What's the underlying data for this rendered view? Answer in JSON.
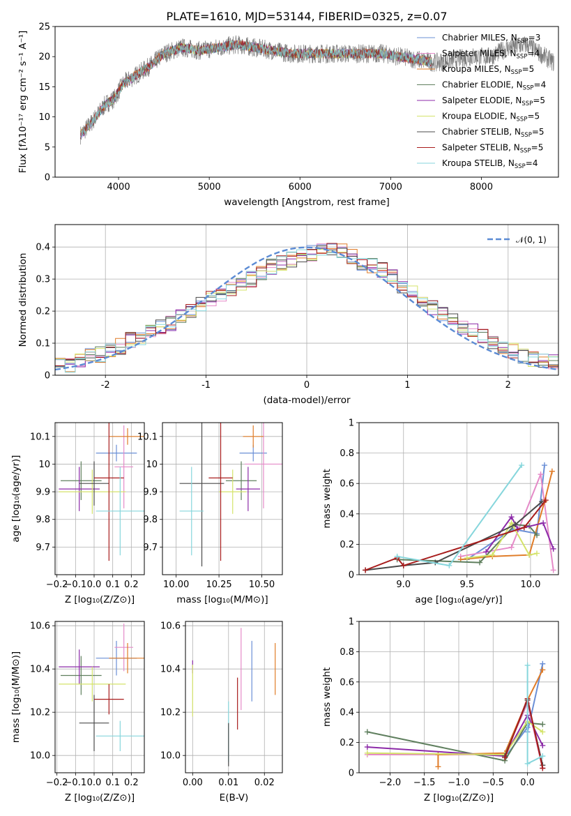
{
  "chart_data": [
    {
      "id": "spectrum",
      "type": "line",
      "title": "PLATE=1610, MJD=53144, FIBERID=0325, z=0.07",
      "xlabel": "wavelength [Angstrom, rest frame]",
      "ylabel": "Flux [fλ10⁻¹⁷ erg cm⁻² s⁻¹ A⁻¹]",
      "xlim": [
        3300,
        8850
      ],
      "ylim": [
        0,
        25
      ],
      "xticks": [
        4000,
        5000,
        6000,
        7000,
        8000
      ],
      "yticks": [
        0,
        5,
        10,
        15,
        20,
        25
      ],
      "grid": false,
      "legend_position": "right",
      "data": {
        "x": [
          3580,
          3700,
          3850,
          3950,
          4050,
          4200,
          4350,
          4500,
          4700,
          4900,
          5100,
          5300,
          5500,
          5700,
          5900,
          6100,
          6300,
          6500,
          6700,
          6900,
          7100,
          7300,
          7500,
          7700,
          7900,
          8100,
          8300,
          8500,
          8800
        ],
        "values": [
          7,
          9,
          12,
          13,
          15.5,
          17,
          18.5,
          20.5,
          21.5,
          21,
          21.5,
          22,
          21.5,
          21,
          20.5,
          20.5,
          20.5,
          20.5,
          20.5,
          20.5,
          20,
          19.5,
          19,
          19.5,
          20,
          20,
          21.5,
          22,
          19
        ]
      },
      "model_stop": 7450,
      "series": [
        {
          "name": "Chabrier MILES, N",
          "sub": "SSP",
          "suffix": "=3",
          "color": "#6a8fd6"
        },
        {
          "name": "Salpeter MILES, N",
          "sub": "SSP",
          "suffix": "=4",
          "color": "#e58ac8"
        },
        {
          "name": "Kroupa MILES, N",
          "sub": "SSP",
          "suffix": "=5",
          "color": "#e07c28"
        },
        {
          "name": "Chabrier ELODIE, N",
          "sub": "SSP",
          "suffix": "=4",
          "color": "#5f7f5e"
        },
        {
          "name": "Salpeter ELODIE, N",
          "sub": "SSP",
          "suffix": "=5",
          "color": "#8c2aa8"
        },
        {
          "name": "Kroupa ELODIE, N",
          "sub": "SSP",
          "suffix": "=5",
          "color": "#d4e36a"
        },
        {
          "name": "Chabrier STELIB, N",
          "sub": "SSP",
          "suffix": "=5",
          "color": "#4a4a4a"
        },
        {
          "name": "Salpeter STELIB, N",
          "sub": "SSP",
          "suffix": "=5",
          "color": "#a81c1c"
        },
        {
          "name": "Kroupa STELIB, N",
          "sub": "SSP",
          "suffix": "=4",
          "color": "#86d6dc"
        }
      ]
    },
    {
      "id": "residuals",
      "type": "histogram",
      "xlabel": "(data-model)/error",
      "ylabel": "Normed distribution",
      "xlim": [
        -2.5,
        2.5
      ],
      "ylim": [
        0,
        0.47
      ],
      "xticks": [
        -2,
        -1,
        0,
        1,
        2
      ],
      "yticks": [
        0.0,
        0.1,
        0.2,
        0.3,
        0.4
      ],
      "grid": true,
      "legend": "𝒩(0, 1)",
      "legend_position": "top-right",
      "reference_curve": "gaussian N(0,1)",
      "bins": [
        -2.5,
        -2.4,
        -2.3,
        -2.2,
        -2.1,
        -2.0,
        -1.9,
        -1.8,
        -1.7,
        -1.6,
        -1.5,
        -1.4,
        -1.3,
        -1.2,
        -1.1,
        -1.0,
        -0.9,
        -0.8,
        -0.7,
        -0.6,
        -0.5,
        -0.4,
        -0.3,
        -0.2,
        -0.1,
        0.0,
        0.1,
        0.2,
        0.3,
        0.4,
        0.5,
        0.6,
        0.7,
        0.8,
        0.9,
        1.0,
        1.1,
        1.2,
        1.3,
        1.4,
        1.5,
        1.6,
        1.7,
        1.8,
        1.9,
        2.0,
        2.1,
        2.2,
        2.3,
        2.4
      ],
      "values": [
        0.03,
        0.032,
        0.045,
        0.06,
        0.065,
        0.075,
        0.09,
        0.11,
        0.12,
        0.14,
        0.15,
        0.16,
        0.18,
        0.2,
        0.22,
        0.24,
        0.25,
        0.27,
        0.29,
        0.3,
        0.32,
        0.34,
        0.35,
        0.36,
        0.37,
        0.38,
        0.385,
        0.39,
        0.385,
        0.37,
        0.35,
        0.34,
        0.33,
        0.31,
        0.28,
        0.26,
        0.23,
        0.21,
        0.19,
        0.17,
        0.15,
        0.14,
        0.12,
        0.1,
        0.09,
        0.075,
        0.06,
        0.05,
        0.045,
        0.04
      ]
    },
    {
      "id": "age-vs-Z",
      "type": "errorbar",
      "xlabel": "Z [log₁₀(Z/Z⊙)]",
      "ylabel": "age  [log₁₀(age/yr)]",
      "xlim": [
        -0.21,
        0.27
      ],
      "ylim": [
        9.6,
        10.15
      ],
      "xticks": [
        -0.2,
        -0.1,
        0.0,
        0.1,
        0.2
      ],
      "xticklabels": [
        "−0.2",
        "−0.1",
        "0.0",
        "0.1",
        "0.2"
      ],
      "yticks": [
        9.7,
        9.8,
        9.9,
        10.0,
        10.1
      ],
      "grid": true,
      "points": [
        {
          "x": 0.12,
          "y": 10.04,
          "xerr": 0.11,
          "yerr": 0.03,
          "color": "#6a8fd6"
        },
        {
          "x": 0.16,
          "y": 9.99,
          "xerr": 0.05,
          "yerr": 0.15,
          "color": "#e58ac8"
        },
        {
          "x": 0.18,
          "y": 10.1,
          "xerr": 0.1,
          "yerr": 0.03,
          "color": "#e07c28"
        },
        {
          "x": -0.07,
          "y": 9.94,
          "xerr": 0.11,
          "yerr": 0.07,
          "color": "#5f7f5e"
        },
        {
          "x": -0.08,
          "y": 9.91,
          "xerr": 0.11,
          "yerr": 0.08,
          "color": "#8c2aa8"
        },
        {
          "x": -0.01,
          "y": 9.9,
          "xerr": 0.18,
          "yerr": 0.08,
          "color": "#d4e36a"
        },
        {
          "x": 0.0,
          "y": 9.93,
          "xerr": 0.08,
          "yerr": 0.08,
          "color": "#4a4a4a"
        },
        {
          "x": 0.08,
          "y": 9.95,
          "xerr": 0.08,
          "yerr": 0.3,
          "color": "#a81c1c"
        },
        {
          "x": 0.14,
          "y": 9.83,
          "xerr": 0.13,
          "yerr": 0.16,
          "color": "#86d6dc"
        }
      ]
    },
    {
      "id": "age-vs-mass",
      "type": "errorbar",
      "xlabel": "mass [log₁₀(M/M⊙)]",
      "xlim": [
        9.92,
        10.62
      ],
      "ylim": [
        9.6,
        10.15
      ],
      "xticks": [
        10.0,
        10.25,
        10.5
      ],
      "xticklabels": [
        "10.00",
        "10.25",
        "10.50"
      ],
      "yticks": [
        9.7,
        9.8,
        9.9,
        10.0,
        10.1
      ],
      "grid": true,
      "points": [
        {
          "x": 10.45,
          "y": 10.04,
          "xerr": 0.08,
          "yerr": 0.03,
          "color": "#6a8fd6"
        },
        {
          "x": 10.51,
          "y": 10.0,
          "xerr": 0.11,
          "yerr": 0.16,
          "color": "#e58ac8"
        },
        {
          "x": 10.45,
          "y": 10.1,
          "xerr": 0.06,
          "yerr": 0.04,
          "color": "#e07c28"
        },
        {
          "x": 10.38,
          "y": 9.94,
          "xerr": 0.09,
          "yerr": 0.07,
          "color": "#5f7f5e"
        },
        {
          "x": 10.42,
          "y": 9.91,
          "xerr": 0.07,
          "yerr": 0.08,
          "color": "#8c2aa8"
        },
        {
          "x": 10.33,
          "y": 9.9,
          "xerr": 0.08,
          "yerr": 0.08,
          "color": "#d4e36a"
        },
        {
          "x": 10.15,
          "y": 9.93,
          "xerr": 0.13,
          "yerr": 0.3,
          "color": "#4a4a4a"
        },
        {
          "x": 10.26,
          "y": 9.95,
          "xerr": 0.07,
          "yerr": 0.3,
          "color": "#a81c1c"
        },
        {
          "x": 10.09,
          "y": 9.83,
          "xerr": 0.07,
          "yerr": 0.16,
          "color": "#86d6dc"
        }
      ]
    },
    {
      "id": "weight-vs-age",
      "type": "line",
      "xlabel": "age  [log₁₀(age/yr)]",
      "ylabel": "mass weight",
      "xlim": [
        8.65,
        10.22
      ],
      "ylim": [
        0,
        1.0
      ],
      "xticks": [
        9.0,
        9.5,
        10.0
      ],
      "xticklabels": [
        "9.0",
        "9.5",
        "10.0"
      ],
      "yticks": [
        0.0,
        0.2,
        0.4,
        0.6,
        0.8,
        1.0
      ],
      "grid": true,
      "series": [
        {
          "color": "#6a8fd6",
          "x": [
            9.5,
            9.86,
            10.05,
            10.11
          ],
          "y": [
            0.1,
            0.3,
            0.27,
            0.72
          ]
        },
        {
          "color": "#e58ac8",
          "x": [
            9.45,
            9.85,
            10.08,
            10.18
          ],
          "y": [
            0.12,
            0.18,
            0.66,
            0.03
          ]
        },
        {
          "color": "#e07c28",
          "x": [
            9.45,
            9.7,
            9.99,
            10.11,
            10.17
          ],
          "y": [
            0.1,
            0.12,
            0.13,
            0.48,
            0.68
          ]
        },
        {
          "color": "#5f7f5e",
          "x": [
            8.95,
            9.6,
            9.88,
            9.99,
            10.05
          ],
          "y": [
            0.1,
            0.08,
            0.33,
            0.32,
            0.26
          ]
        },
        {
          "color": "#8c2aa8",
          "x": [
            9.65,
            9.85,
            9.9,
            10.1,
            10.18
          ],
          "y": [
            0.15,
            0.38,
            0.3,
            0.34,
            0.17
          ]
        },
        {
          "color": "#d4e36a",
          "x": [
            9.5,
            9.7,
            9.85,
            9.99,
            10.05
          ],
          "y": [
            0.11,
            0.13,
            0.34,
            0.13,
            0.14
          ]
        },
        {
          "color": "#4a4a4a",
          "x": [
            8.7,
            9.0,
            9.25,
            9.88,
            10.09
          ],
          "y": [
            0.03,
            0.06,
            0.08,
            0.33,
            0.48
          ]
        },
        {
          "color": "#a81c1c",
          "x": [
            8.7,
            8.95,
            9.0,
            9.95,
            10.12
          ],
          "y": [
            0.03,
            0.11,
            0.06,
            0.31,
            0.49
          ]
        },
        {
          "color": "#86d6dc",
          "x": [
            8.95,
            9.36,
            9.93
          ],
          "y": [
            0.12,
            0.06,
            0.72
          ]
        }
      ]
    },
    {
      "id": "mass-vs-Z",
      "type": "errorbar",
      "xlabel": "Z [log₁₀(Z/Z⊙)]",
      "ylabel": "mass [log₁₀(M/M⊙)]",
      "xlim": [
        -0.21,
        0.27
      ],
      "ylim": [
        9.92,
        10.62
      ],
      "xticks": [
        -0.2,
        -0.1,
        0.0,
        0.1,
        0.2
      ],
      "xticklabels": [
        "−0.2",
        "−0.1",
        "0.0",
        "0.1",
        "0.2"
      ],
      "yticks": [
        10.0,
        10.2,
        10.4,
        10.6
      ],
      "yticklabels": [
        "10.0",
        "10.2",
        "10.4",
        "10.6"
      ],
      "grid": true,
      "points": [
        {
          "x": 0.12,
          "y": 10.45,
          "xerr": 0.11,
          "yerr": 0.08,
          "color": "#6a8fd6"
        },
        {
          "x": 0.16,
          "y": 10.5,
          "xerr": 0.05,
          "yerr": 0.11,
          "color": "#e58ac8"
        },
        {
          "x": 0.18,
          "y": 10.45,
          "xerr": 0.1,
          "yerr": 0.07,
          "color": "#e07c28"
        },
        {
          "x": -0.07,
          "y": 10.37,
          "xerr": 0.11,
          "yerr": 0.09,
          "color": "#5f7f5e"
        },
        {
          "x": -0.08,
          "y": 10.41,
          "xerr": 0.11,
          "yerr": 0.08,
          "color": "#8c2aa8"
        },
        {
          "x": -0.01,
          "y": 10.33,
          "xerr": 0.18,
          "yerr": 0.08,
          "color": "#d4e36a"
        },
        {
          "x": 0.0,
          "y": 10.15,
          "xerr": 0.08,
          "yerr": 0.13,
          "color": "#4a4a4a"
        },
        {
          "x": 0.08,
          "y": 10.26,
          "xerr": 0.08,
          "yerr": 0.07,
          "color": "#a81c1c"
        },
        {
          "x": 0.14,
          "y": 10.09,
          "xerr": 0.13,
          "yerr": 0.07,
          "color": "#86d6dc"
        }
      ]
    },
    {
      "id": "mass-vs-EBV",
      "type": "errorbar",
      "xlabel": "E(B-V)",
      "xlim": [
        -0.002,
        0.025
      ],
      "ylim": [
        9.92,
        10.62
      ],
      "xticks": [
        0.0,
        0.01,
        0.02
      ],
      "xticklabels": [
        "0.00",
        "0.01",
        "0.02"
      ],
      "yticks": [
        10.0,
        10.2,
        10.4,
        10.6
      ],
      "yticklabels": [
        "10.0",
        "10.2",
        "10.4",
        "10.6"
      ],
      "grid": true,
      "points": [
        {
          "x": 0.0,
          "y": 10.41,
          "xerr": 0,
          "yerr": 0.03,
          "color": "#8c2aa8"
        },
        {
          "x": 0.0,
          "y": 10.3,
          "xerr": 0,
          "yerr": 0.12,
          "color": "#d4e36a"
        },
        {
          "x": 0.01,
          "y": 10.11,
          "xerr": 0,
          "yerr": 0.14,
          "color": "#86d6dc"
        },
        {
          "x": 0.01,
          "y": 10.05,
          "xerr": 0,
          "yerr": 0.1,
          "color": "#4a4a4a"
        },
        {
          "x": 0.0125,
          "y": 10.24,
          "xerr": 0,
          "yerr": 0.12,
          "color": "#a81c1c"
        },
        {
          "x": 0.0135,
          "y": 10.4,
          "xerr": 0,
          "yerr": 0.19,
          "color": "#e58ac8"
        },
        {
          "x": 0.0165,
          "y": 10.39,
          "xerr": 0,
          "yerr": 0.14,
          "color": "#6a8fd6"
        },
        {
          "x": 0.023,
          "y": 10.4,
          "xerr": 0,
          "yerr": 0.12,
          "color": "#e07c28"
        }
      ]
    },
    {
      "id": "weight-vs-Z",
      "type": "line",
      "xlabel": "Z [log₁₀(Z/Z⊙)]",
      "ylabel": "mass weight",
      "xlim": [
        -2.45,
        0.45
      ],
      "ylim": [
        0,
        1.0
      ],
      "xticks": [
        -2.0,
        -1.5,
        -1.0,
        -0.5,
        0.0
      ],
      "xticklabels": [
        "−2.0",
        "−1.5",
        "−1.0",
        "−0.5",
        "0.0"
      ],
      "yticks": [
        0.0,
        0.2,
        0.4,
        0.6,
        0.8,
        1.0
      ],
      "grid": true,
      "series": [
        {
          "color": "#6a8fd6",
          "x": [
            -0.33,
            0.0,
            0.0,
            0.22
          ],
          "y": [
            0.1,
            0.3,
            0.27,
            0.72
          ]
        },
        {
          "color": "#e58ac8",
          "x": [
            -2.33,
            -0.33,
            0.0,
            0.22
          ],
          "y": [
            0.12,
            0.12,
            0.46,
            0.03
          ]
        },
        {
          "color": "#e07c28",
          "x": [
            -1.3,
            -1.3,
            -0.33,
            0.0,
            0.22
          ],
          "y": [
            0.04,
            0.12,
            0.13,
            0.48,
            0.68
          ]
        },
        {
          "color": "#5f7f5e",
          "x": [
            -2.33,
            -0.33,
            0.0,
            0.22
          ],
          "y": [
            0.27,
            0.08,
            0.33,
            0.32
          ]
        },
        {
          "color": "#8c2aa8",
          "x": [
            -2.33,
            -0.33,
            0.0,
            0.22
          ],
          "y": [
            0.17,
            0.11,
            0.38,
            0.18
          ]
        },
        {
          "color": "#d4e36a",
          "x": [
            -2.33,
            -0.33,
            0.0,
            0.22
          ],
          "y": [
            0.13,
            0.12,
            0.34,
            0.27
          ]
        },
        {
          "color": "#4a4a4a",
          "x": [
            -0.33,
            0.0,
            0.22
          ],
          "y": [
            0.11,
            0.48,
            0.05
          ]
        },
        {
          "color": "#a81c1c",
          "x": [
            -0.33,
            0.0,
            0.22
          ],
          "y": [
            0.1,
            0.49,
            0.03
          ]
        },
        {
          "color": "#86d6dc",
          "x": [
            0.0,
            0.0,
            0.22
          ],
          "y": [
            0.71,
            0.06,
            0.11
          ]
        }
      ]
    }
  ]
}
